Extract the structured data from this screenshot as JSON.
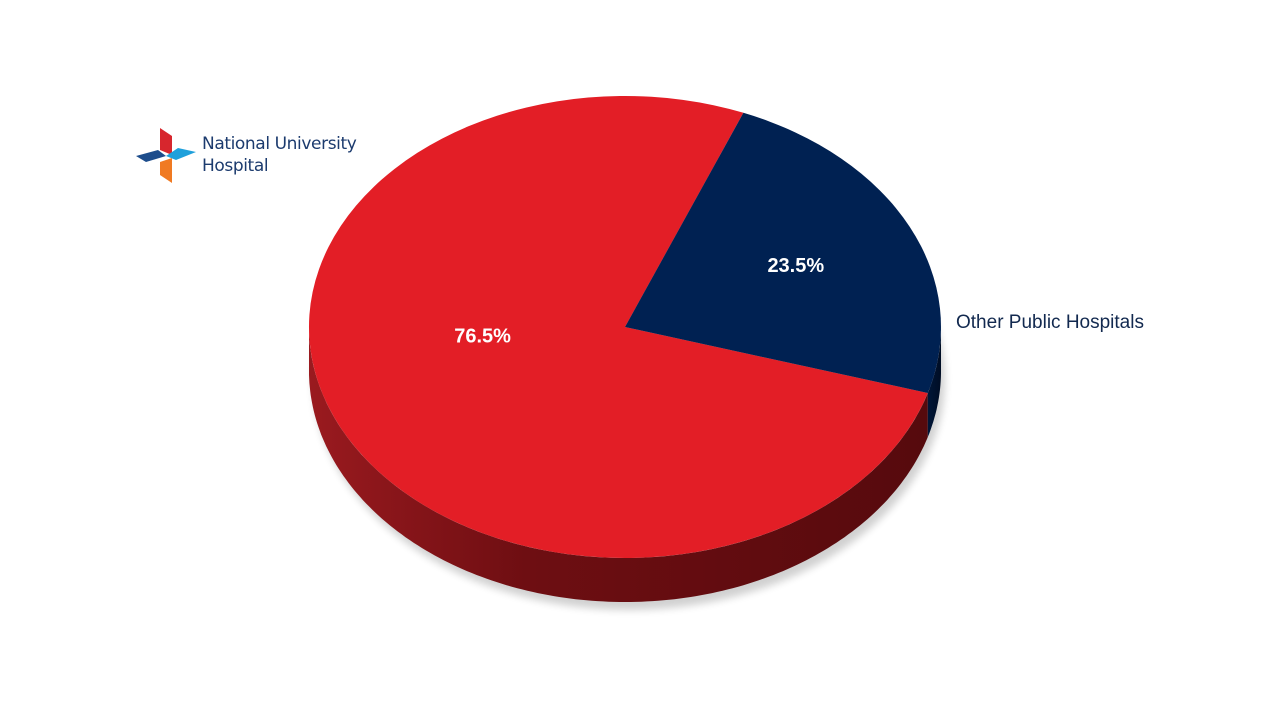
{
  "chart_data": {
    "type": "pie",
    "categories": [
      "National University Hospital",
      "Other Public Hospitals"
    ],
    "values": [
      76.5,
      23.5
    ],
    "value_labels": [
      "76.5%",
      "23.5%"
    ],
    "colors": [
      "#e31e26",
      "#002152"
    ]
  }
}
